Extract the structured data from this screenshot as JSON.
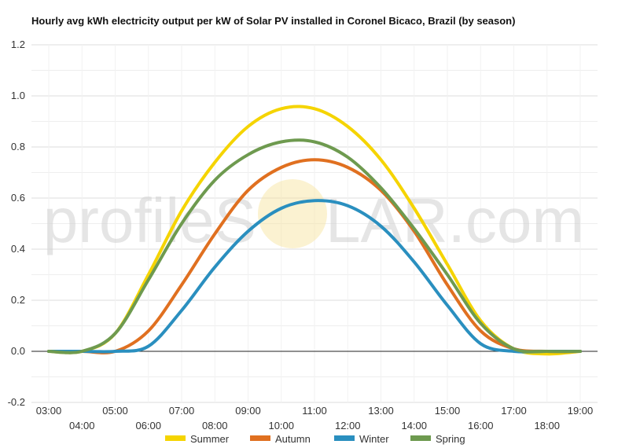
{
  "chart_data": {
    "type": "line",
    "title": "Hourly avg kWh electricity output per kW of Solar PV installed in Coronel Bicaco, Brazil (by season)",
    "xlabel": "",
    "ylabel": "",
    "x": [
      "03:00",
      "04:00",
      "05:00",
      "06:00",
      "07:00",
      "08:00",
      "09:00",
      "10:00",
      "11:00",
      "12:00",
      "13:00",
      "14:00",
      "15:00",
      "16:00",
      "17:00",
      "18:00",
      "19:00"
    ],
    "ylim": [
      -0.2,
      1.2
    ],
    "yticks": [
      "1.2",
      "1.0",
      "0.8",
      "0.6",
      "0.4",
      "0.2",
      "0.0",
      "-0.2"
    ],
    "grid": true,
    "legend": "bottom",
    "series": [
      {
        "name": "Summer",
        "color": "#f5d400",
        "values": [
          0.0,
          0.0,
          0.07,
          0.3,
          0.55,
          0.74,
          0.88,
          0.95,
          0.95,
          0.88,
          0.75,
          0.56,
          0.34,
          0.12,
          0.01,
          -0.01,
          0.0
        ]
      },
      {
        "name": "Autumn",
        "color": "#e07020",
        "values": [
          0.0,
          0.0,
          0.0,
          0.08,
          0.26,
          0.46,
          0.63,
          0.72,
          0.75,
          0.72,
          0.63,
          0.47,
          0.26,
          0.08,
          0.01,
          0.0,
          0.0
        ]
      },
      {
        "name": "Winter",
        "color": "#2a8fbf",
        "values": [
          0.0,
          0.0,
          0.0,
          0.02,
          0.16,
          0.33,
          0.47,
          0.56,
          0.59,
          0.57,
          0.49,
          0.35,
          0.18,
          0.03,
          0.0,
          0.0,
          0.0
        ]
      },
      {
        "name": "Spring",
        "color": "#6e9a4f",
        "values": [
          0.0,
          0.0,
          0.07,
          0.28,
          0.5,
          0.67,
          0.77,
          0.82,
          0.82,
          0.76,
          0.64,
          0.48,
          0.3,
          0.11,
          0.01,
          0.0,
          0.0
        ]
      }
    ]
  },
  "watermark": {
    "left": "profileS",
    "right": "LAR.com"
  }
}
